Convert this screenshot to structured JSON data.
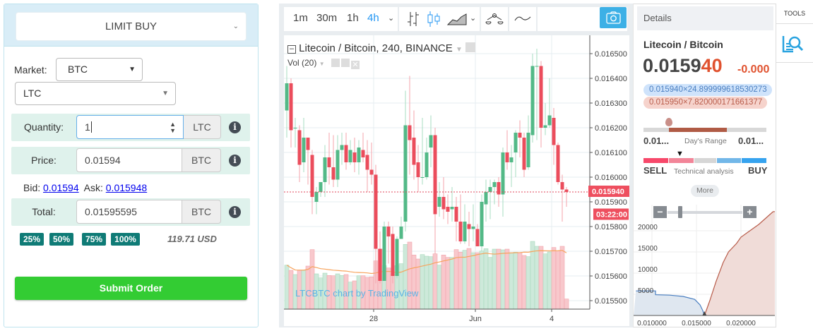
{
  "order_form": {
    "order_type": "LIMIT BUY",
    "market_label": "Market:",
    "market_value": "BTC",
    "coin_value": "LTC",
    "quantity": {
      "label": "Quantity:",
      "value": "1",
      "unit": "LTC"
    },
    "price": {
      "label": "Price:",
      "value": "0.01594",
      "unit": "BTC"
    },
    "bid_label": "Bid:",
    "bid_value": "0.01594",
    "ask_label": "Ask:",
    "ask_value": "0.015948",
    "total": {
      "label": "Total:",
      "value": "0.01595595",
      "unit": "BTC"
    },
    "percent_buttons": [
      "25%",
      "50%",
      "75%",
      "100%"
    ],
    "usd_value": "119.71 USD",
    "submit_label": "Submit Order",
    "colors": {
      "submit": "#33cc33",
      "percent": "#0f7b76",
      "row": "#dff2ec"
    }
  },
  "chart_toolbar": {
    "intervals": [
      "1m",
      "30m",
      "1h",
      "4h"
    ],
    "active_interval": "4h"
  },
  "chart_data": {
    "type": "candlestick",
    "title": "Litecoin / Bitcoin, 240, BINANCE",
    "indicator": "Vol (20)",
    "watermark": "LTCBTC chart by TradingView",
    "ylim": [
      0.01545,
      0.01652
    ],
    "y_ticks": [
      "0.016500",
      "0.016400",
      "0.016300",
      "0.016200",
      "0.016100",
      "0.016000",
      "0.015900",
      "0.015800",
      "0.015700",
      "0.015600",
      "0.015500"
    ],
    "x_ticks": [
      {
        "label": "28",
        "index": 20.5
      },
      {
        "label": "Jun",
        "index": 44.5
      },
      {
        "label": "4",
        "index": 62.5
      }
    ],
    "last_price": "0.015940",
    "countdown": "03:22:00",
    "up_color": "#53b987",
    "down_color": "#eb4d5c",
    "ohlc": [
      [
        0.01627,
        0.01645,
        0.01616,
        0.01638
      ],
      [
        0.01638,
        0.0164,
        0.01612,
        0.01619
      ],
      [
        0.0162,
        0.01624,
        0.01612,
        0.0162
      ],
      [
        0.01619,
        0.01621,
        0.01598,
        0.01605
      ],
      [
        0.01606,
        0.01624,
        0.01602,
        0.01616
      ],
      [
        0.01616,
        0.01616,
        0.01597,
        0.01611
      ],
      [
        0.01609,
        0.01611,
        0.01585,
        0.01592
      ],
      [
        0.0159,
        0.01596,
        0.01585,
        0.01594
      ],
      [
        0.01594,
        0.01598,
        0.01592,
        0.01598
      ],
      [
        0.01598,
        0.01613,
        0.01592,
        0.01608
      ],
      [
        0.01608,
        0.01618,
        0.01597,
        0.01604
      ],
      [
        0.01604,
        0.01617,
        0.01596,
        0.01599
      ],
      [
        0.01599,
        0.01617,
        0.01596,
        0.01611
      ],
      [
        0.01611,
        0.01618,
        0.01605,
        0.01613
      ],
      [
        0.01613,
        0.01618,
        0.01603,
        0.01606
      ],
      [
        0.01606,
        0.01615,
        0.01605,
        0.01611
      ],
      [
        0.0161,
        0.01616,
        0.01602,
        0.01606
      ],
      [
        0.01606,
        0.01615,
        0.01601,
        0.01612
      ],
      [
        0.01611,
        0.01618,
        0.01606,
        0.01608
      ],
      [
        0.01609,
        0.01615,
        0.01594,
        0.01603
      ],
      [
        0.01603,
        0.01614,
        0.01597,
        0.01601
      ],
      [
        0.01601,
        0.01605,
        0.01557,
        0.01571
      ],
      [
        0.01571,
        0.01578,
        0.01557,
        0.01558
      ],
      [
        0.01558,
        0.01582,
        0.01558,
        0.0158
      ],
      [
        0.0158,
        0.01582,
        0.01565,
        0.01576
      ],
      [
        0.01577,
        0.0158,
        0.01557,
        0.0156
      ],
      [
        0.0156,
        0.01576,
        0.01559,
        0.01575
      ],
      [
        0.01575,
        0.01584,
        0.01575,
        0.0158
      ],
      [
        0.01582,
        0.01635,
        0.01578,
        0.01621
      ],
      [
        0.01621,
        0.01641,
        0.01601,
        0.01615
      ],
      [
        0.01616,
        0.01627,
        0.01599,
        0.01605
      ],
      [
        0.01606,
        0.01613,
        0.01594,
        0.016
      ],
      [
        0.016,
        0.01624,
        0.01597,
        0.016
      ],
      [
        0.016,
        0.01616,
        0.01599,
        0.0161
      ],
      [
        0.01612,
        0.01625,
        0.01604,
        0.01617
      ],
      [
        0.01617,
        0.0162,
        0.01569,
        0.01585
      ],
      [
        0.01588,
        0.01598,
        0.01584,
        0.01592
      ],
      [
        0.01592,
        0.016,
        0.01583,
        0.01587
      ],
      [
        0.01588,
        0.01593,
        0.01581,
        0.01586
      ],
      [
        0.01587,
        0.01596,
        0.01582,
        0.01588
      ],
      [
        0.01588,
        0.01592,
        0.01574,
        0.01582
      ],
      [
        0.01582,
        0.01593,
        0.01573,
        0.01574
      ],
      [
        0.01574,
        0.01589,
        0.01573,
        0.01582
      ],
      [
        0.01581,
        0.01586,
        0.01572,
        0.01579
      ],
      [
        0.01579,
        0.01589,
        0.01574,
        0.0158
      ],
      [
        0.01579,
        0.01581,
        0.01572,
        0.01572
      ],
      [
        0.01572,
        0.01593,
        0.0157,
        0.0159
      ],
      [
        0.01589,
        0.01599,
        0.01582,
        0.01594
      ],
      [
        0.01594,
        0.01599,
        0.01583,
        0.01596
      ],
      [
        0.01596,
        0.01599,
        0.01589,
        0.01598
      ],
      [
        0.01598,
        0.016,
        0.01588,
        0.01593
      ],
      [
        0.01593,
        0.01612,
        0.01584,
        0.0161
      ],
      [
        0.0161,
        0.01619,
        0.01603,
        0.01606
      ],
      [
        0.01606,
        0.01613,
        0.01596,
        0.01608
      ],
      [
        0.0161,
        0.01619,
        0.016,
        0.01618
      ],
      [
        0.01618,
        0.01623,
        0.01608,
        0.01616
      ],
      [
        0.01616,
        0.01618,
        0.016,
        0.01603
      ],
      [
        0.01604,
        0.01625,
        0.01603,
        0.01618
      ],
      [
        0.01617,
        0.0165,
        0.01614,
        0.01645
      ],
      [
        0.01645,
        0.01652,
        0.01615,
        0.01645
      ],
      [
        0.01645,
        0.01647,
        0.01612,
        0.0162
      ],
      [
        0.0162,
        0.0163,
        0.01617,
        0.01621
      ],
      [
        0.01621,
        0.0164,
        0.0162,
        0.01625
      ],
      [
        0.01624,
        0.01628,
        0.01605,
        0.01613
      ],
      [
        0.01613,
        0.01614,
        0.01597,
        0.01598
      ],
      [
        0.01598,
        0.01601,
        0.01582,
        0.01595
      ],
      [
        0.01595,
        0.01596,
        0.01588,
        0.01594
      ]
    ],
    "volume": [
      187,
      165,
      147,
      165,
      165,
      183,
      253,
      150,
      133,
      153,
      143,
      142,
      150,
      143,
      147,
      115,
      120,
      142,
      142,
      135,
      137,
      205,
      255,
      185,
      175,
      150,
      185,
      193,
      275,
      285,
      230,
      213,
      232,
      225,
      223,
      235,
      187,
      230,
      220,
      220,
      253,
      242,
      250,
      258,
      240,
      240,
      247,
      257,
      220,
      255,
      255,
      252,
      255,
      240,
      242,
      240,
      228,
      223,
      288,
      267,
      267,
      235,
      243,
      262,
      248,
      267,
      43
    ],
    "volume_ma_period": 20
  },
  "details": {
    "header": "Details",
    "symbol": "Litecoin / Bitcoin",
    "price_main": "0.0159",
    "price_tail": "40",
    "change": "-0.000",
    "bid_pill": "0.015940×24.899999618530273",
    "ask_pill": "0.015950×7.820000171661377",
    "range_low": "0.01...",
    "range_label": "Day's Range",
    "range_high": "0.01...",
    "sell_label": "SELL",
    "ta_label": "Technical analysis",
    "buy_label": "BUY",
    "more_label": "More",
    "tools_label": "TOOLS"
  },
  "depth_chart": {
    "y_ticks": [
      "20000",
      "15000",
      "10000",
      "5000"
    ],
    "x_ticks": [
      "0.010000",
      "0.015000",
      "0.020000"
    ],
    "bids": [
      [
        0.0082,
        5800
      ],
      [
        0.0104,
        5800
      ],
      [
        0.0104,
        4900
      ],
      [
        0.012,
        4800
      ],
      [
        0.0135,
        4500
      ],
      [
        0.0148,
        3800
      ],
      [
        0.0154,
        2500
      ],
      [
        0.0157,
        1200
      ],
      [
        0.0159,
        0
      ]
    ],
    "asks": [
      [
        0.0159,
        0
      ],
      [
        0.0165,
        3500
      ],
      [
        0.0172,
        8000
      ],
      [
        0.018,
        12500
      ],
      [
        0.0186,
        15000
      ],
      [
        0.0195,
        17000
      ],
      [
        0.02,
        18500
      ],
      [
        0.021,
        20000
      ],
      [
        0.022,
        21500
      ],
      [
        0.0228,
        23000
      ],
      [
        0.0236,
        24500
      ],
      [
        0.025,
        24800
      ]
    ],
    "bid_color": "#4a7fc1",
    "ask_color": "#b85c4a"
  }
}
